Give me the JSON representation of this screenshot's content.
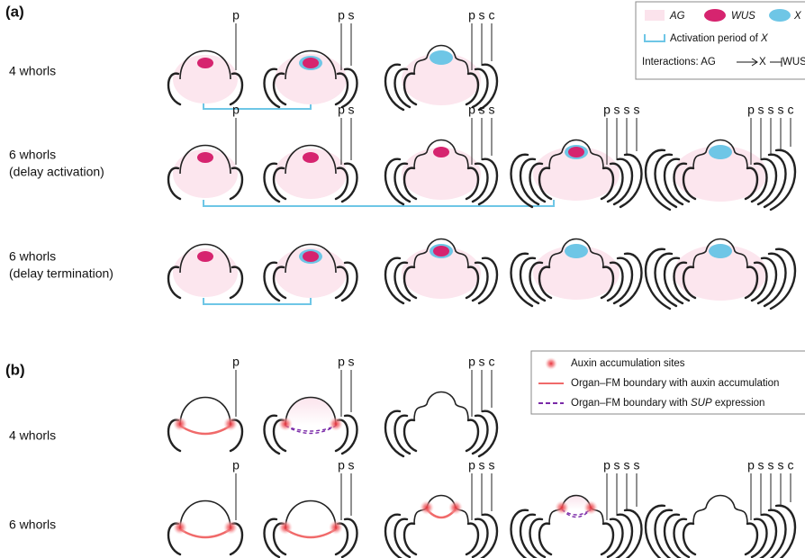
{
  "panel_a": {
    "label": "(a)",
    "legend": {
      "ag": "AG",
      "wus": "WUS",
      "x": "X",
      "activation_prefix": "Activation period of",
      "activation_x": "X",
      "interactions_prefix": "Interactions: AG",
      "interactions_x": "X",
      "interactions_wus": "WUS"
    },
    "rows": [
      {
        "title": "4 whorls",
        "labels": [
          [
            "p"
          ],
          [
            "s",
            "p"
          ],
          [
            "c",
            "s",
            "p"
          ]
        ]
      },
      {
        "title": "6 whorls",
        "subtitle": "(delay activation)",
        "labels": [
          [
            "p"
          ],
          [
            "s",
            "p"
          ],
          [
            "s",
            "s",
            "p"
          ],
          [
            "s",
            "s",
            "s",
            "p"
          ],
          [
            "c",
            "s",
            "s",
            "s",
            "p"
          ]
        ]
      },
      {
        "title": "6 whorls",
        "subtitle": "(delay termination)"
      }
    ]
  },
  "panel_b": {
    "label": "(b)",
    "legend": {
      "auxin": "Auxin accumulation sites",
      "boundary_auxin": "Organ–FM boundary with auxin accumulation",
      "boundary_sup_prefix": "Organ–FM boundary with",
      "boundary_sup_gene": "SUP",
      "boundary_sup_suffix": "expression"
    },
    "rows": [
      {
        "title": "4 whorls",
        "labels": [
          [
            "p"
          ],
          [
            "s",
            "p"
          ],
          [
            "c",
            "s",
            "p"
          ]
        ]
      },
      {
        "title": "6 whorls",
        "labels": [
          [
            "p"
          ],
          [
            "s",
            "p"
          ],
          [
            "s",
            "s",
            "p"
          ],
          [
            "s",
            "s",
            "s",
            "p"
          ],
          [
            "c",
            "s",
            "s",
            "s",
            "p"
          ]
        ]
      }
    ]
  }
}
